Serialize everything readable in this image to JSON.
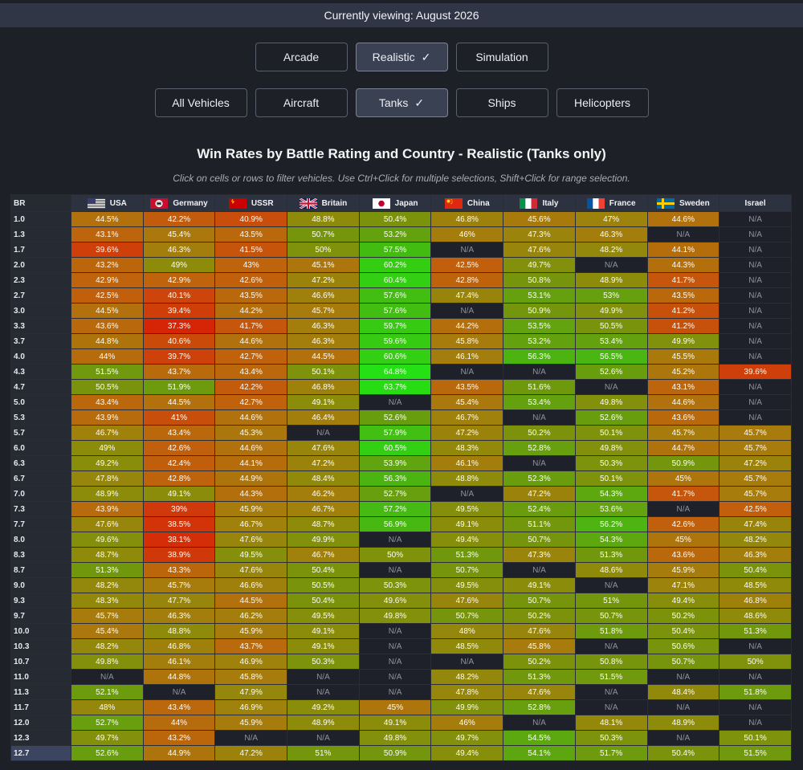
{
  "header": {
    "viewing": "Currently viewing: August 2026"
  },
  "modes": [
    {
      "label": "Arcade",
      "active": false
    },
    {
      "label": "Realistic",
      "active": true
    },
    {
      "label": "Simulation",
      "active": false
    }
  ],
  "types": [
    {
      "label": "All Vehicles",
      "active": false
    },
    {
      "label": "Aircraft",
      "active": false
    },
    {
      "label": "Tanks",
      "active": true
    },
    {
      "label": "Ships",
      "active": false
    },
    {
      "label": "Helicopters",
      "active": false
    }
  ],
  "title": "Win Rates by Battle Rating and Country - Realistic (Tanks only)",
  "subtitle": "Click on cells or rows to filter vehicles. Use Ctrl+Click for multiple selections, Shift+Click for range selection.",
  "table": {
    "br_header": "BR",
    "countries": [
      {
        "name": "USA",
        "flag": "usa-flag-icon"
      },
      {
        "name": "Germany",
        "flag": "germany-flag-icon"
      },
      {
        "name": "USSR",
        "flag": "ussr-flag-icon"
      },
      {
        "name": "Britain",
        "flag": "britain-flag-icon"
      },
      {
        "name": "Japan",
        "flag": "japan-flag-icon"
      },
      {
        "name": "China",
        "flag": "china-flag-icon"
      },
      {
        "name": "Italy",
        "flag": "italy-flag-icon"
      },
      {
        "name": "France",
        "flag": "france-flag-icon"
      },
      {
        "name": "Sweden",
        "flag": "sweden-flag-icon"
      },
      {
        "name": "Israel",
        "flag": ""
      }
    ],
    "na_label": "N/A",
    "selected_br": "12.7",
    "rows": [
      {
        "br": "1.0",
        "cells": [
          "44.5%",
          "42.2%",
          "40.9%",
          "48.8%",
          "50.4%",
          "46.8%",
          "45.6%",
          "47%",
          "44.6%",
          "N/A"
        ]
      },
      {
        "br": "1.3",
        "cells": [
          "43.1%",
          "45.4%",
          "43.5%",
          "50.7%",
          "53.2%",
          "46%",
          "47.3%",
          "46.3%",
          "N/A",
          "N/A"
        ]
      },
      {
        "br": "1.7",
        "cells": [
          "39.6%",
          "46.3%",
          "41.5%",
          "50%",
          "57.5%",
          "N/A",
          "47.6%",
          "48.2%",
          "44.1%",
          "N/A"
        ]
      },
      {
        "br": "2.0",
        "cells": [
          "43.2%",
          "49%",
          "43%",
          "45.1%",
          "60.2%",
          "42.5%",
          "49.7%",
          "N/A",
          "44.3%",
          "N/A"
        ]
      },
      {
        "br": "2.3",
        "cells": [
          "42.9%",
          "42.9%",
          "42.6%",
          "47.2%",
          "60.4%",
          "42.8%",
          "50.8%",
          "48.9%",
          "41.7%",
          "N/A"
        ]
      },
      {
        "br": "2.7",
        "cells": [
          "42.5%",
          "40.1%",
          "43.5%",
          "46.6%",
          "57.6%",
          "47.4%",
          "53.1%",
          "53%",
          "43.5%",
          "N/A"
        ]
      },
      {
        "br": "3.0",
        "cells": [
          "44.5%",
          "39.4%",
          "44.2%",
          "45.7%",
          "57.6%",
          "N/A",
          "50.9%",
          "49.9%",
          "41.2%",
          "N/A"
        ]
      },
      {
        "br": "3.3",
        "cells": [
          "43.6%",
          "37.3%",
          "41.7%",
          "46.3%",
          "59.7%",
          "44.2%",
          "53.5%",
          "50.5%",
          "41.2%",
          "N/A"
        ]
      },
      {
        "br": "3.7",
        "cells": [
          "44.8%",
          "40.6%",
          "44.6%",
          "46.3%",
          "59.6%",
          "45.8%",
          "53.2%",
          "53.4%",
          "49.9%",
          "N/A"
        ]
      },
      {
        "br": "4.0",
        "cells": [
          "44%",
          "39.7%",
          "42.7%",
          "44.5%",
          "60.6%",
          "46.1%",
          "56.3%",
          "56.5%",
          "45.5%",
          "N/A"
        ]
      },
      {
        "br": "4.3",
        "cells": [
          "51.5%",
          "43.7%",
          "43.4%",
          "50.1%",
          "64.8%",
          "N/A",
          "N/A",
          "52.6%",
          "45.2%",
          "39.6%"
        ]
      },
      {
        "br": "4.7",
        "cells": [
          "50.5%",
          "51.9%",
          "42.2%",
          "46.8%",
          "63.7%",
          "43.5%",
          "51.6%",
          "N/A",
          "43.1%",
          "N/A"
        ]
      },
      {
        "br": "5.0",
        "cells": [
          "43.4%",
          "44.5%",
          "42.7%",
          "49.1%",
          "N/A",
          "45.4%",
          "53.4%",
          "49.8%",
          "44.6%",
          "N/A"
        ]
      },
      {
        "br": "5.3",
        "cells": [
          "43.9%",
          "41%",
          "44.6%",
          "46.4%",
          "52.6%",
          "46.7%",
          "N/A",
          "52.6%",
          "43.6%",
          "N/A"
        ]
      },
      {
        "br": "5.7",
        "cells": [
          "46.7%",
          "43.4%",
          "45.3%",
          "N/A",
          "57.9%",
          "47.2%",
          "50.2%",
          "50.1%",
          "45.7%",
          "45.7%"
        ]
      },
      {
        "br": "6.0",
        "cells": [
          "49%",
          "42.6%",
          "44.6%",
          "47.6%",
          "60.5%",
          "48.3%",
          "52.8%",
          "49.8%",
          "44.7%",
          "45.7%"
        ]
      },
      {
        "br": "6.3",
        "cells": [
          "49.2%",
          "42.4%",
          "44.1%",
          "47.2%",
          "53.9%",
          "46.1%",
          "N/A",
          "50.3%",
          "50.9%",
          "47.2%"
        ]
      },
      {
        "br": "6.7",
        "cells": [
          "47.8%",
          "42.8%",
          "44.9%",
          "48.4%",
          "56.3%",
          "48.8%",
          "52.3%",
          "50.1%",
          "45%",
          "45.7%"
        ]
      },
      {
        "br": "7.0",
        "cells": [
          "48.9%",
          "49.1%",
          "44.3%",
          "46.2%",
          "52.7%",
          "N/A",
          "47.2%",
          "54.3%",
          "41.7%",
          "45.7%"
        ]
      },
      {
        "br": "7.3",
        "cells": [
          "43.9%",
          "39%",
          "45.9%",
          "46.7%",
          "57.2%",
          "49.5%",
          "52.4%",
          "53.6%",
          "N/A",
          "42.5%"
        ]
      },
      {
        "br": "7.7",
        "cells": [
          "47.6%",
          "38.5%",
          "46.7%",
          "48.7%",
          "56.9%",
          "49.1%",
          "51.1%",
          "56.2%",
          "42.6%",
          "47.4%"
        ]
      },
      {
        "br": "8.0",
        "cells": [
          "49.6%",
          "38.1%",
          "47.6%",
          "49.9%",
          "N/A",
          "49.4%",
          "50.7%",
          "54.3%",
          "45%",
          "48.2%"
        ]
      },
      {
        "br": "8.3",
        "cells": [
          "48.7%",
          "38.9%",
          "49.5%",
          "46.7%",
          "50%",
          "51.3%",
          "47.3%",
          "51.3%",
          "43.6%",
          "46.3%"
        ]
      },
      {
        "br": "8.7",
        "cells": [
          "51.3%",
          "43.3%",
          "47.6%",
          "50.4%",
          "N/A",
          "50.7%",
          "N/A",
          "48.6%",
          "45.9%",
          "50.4%"
        ]
      },
      {
        "br": "9.0",
        "cells": [
          "48.2%",
          "45.7%",
          "46.6%",
          "50.5%",
          "50.3%",
          "49.5%",
          "49.1%",
          "N/A",
          "47.1%",
          "48.5%"
        ]
      },
      {
        "br": "9.3",
        "cells": [
          "48.3%",
          "47.7%",
          "44.5%",
          "50.4%",
          "49.6%",
          "47.6%",
          "50.7%",
          "51%",
          "49.4%",
          "46.8%"
        ]
      },
      {
        "br": "9.7",
        "cells": [
          "45.7%",
          "46.3%",
          "46.2%",
          "49.5%",
          "49.8%",
          "50.7%",
          "50.2%",
          "50.7%",
          "50.2%",
          "48.6%"
        ]
      },
      {
        "br": "10.0",
        "cells": [
          "45.4%",
          "48.8%",
          "45.9%",
          "49.1%",
          "N/A",
          "48%",
          "47.6%",
          "51.8%",
          "50.4%",
          "51.3%"
        ]
      },
      {
        "br": "10.3",
        "cells": [
          "48.2%",
          "46.8%",
          "43.7%",
          "49.1%",
          "N/A",
          "48.5%",
          "45.8%",
          "N/A",
          "50.6%",
          "N/A"
        ]
      },
      {
        "br": "10.7",
        "cells": [
          "49.8%",
          "46.1%",
          "46.9%",
          "50.3%",
          "N/A",
          "N/A",
          "50.2%",
          "50.8%",
          "50.7%",
          "50%"
        ]
      },
      {
        "br": "11.0",
        "cells": [
          "N/A",
          "44.8%",
          "45.8%",
          "N/A",
          "N/A",
          "48.2%",
          "51.3%",
          "51.5%",
          "N/A",
          "N/A"
        ]
      },
      {
        "br": "11.3",
        "cells": [
          "52.1%",
          "N/A",
          "47.9%",
          "N/A",
          "N/A",
          "47.8%",
          "47.6%",
          "N/A",
          "48.4%",
          "51.8%"
        ]
      },
      {
        "br": "11.7",
        "cells": [
          "48%",
          "43.4%",
          "46.9%",
          "49.2%",
          "45%",
          "49.9%",
          "52.8%",
          "N/A",
          "N/A",
          "N/A"
        ]
      },
      {
        "br": "12.0",
        "cells": [
          "52.7%",
          "44%",
          "45.9%",
          "48.9%",
          "49.1%",
          "46%",
          "N/A",
          "48.1%",
          "48.9%",
          "N/A"
        ]
      },
      {
        "br": "12.3",
        "cells": [
          "49.7%",
          "43.2%",
          "N/A",
          "N/A",
          "49.8%",
          "49.7%",
          "54.5%",
          "50.3%",
          "N/A",
          "50.1%"
        ]
      },
      {
        "br": "12.7",
        "cells": [
          "52.6%",
          "44.9%",
          "47.2%",
          "51%",
          "50.9%",
          "49.4%",
          "54.1%",
          "51.7%",
          "50.4%",
          "51.5%"
        ]
      }
    ]
  }
}
